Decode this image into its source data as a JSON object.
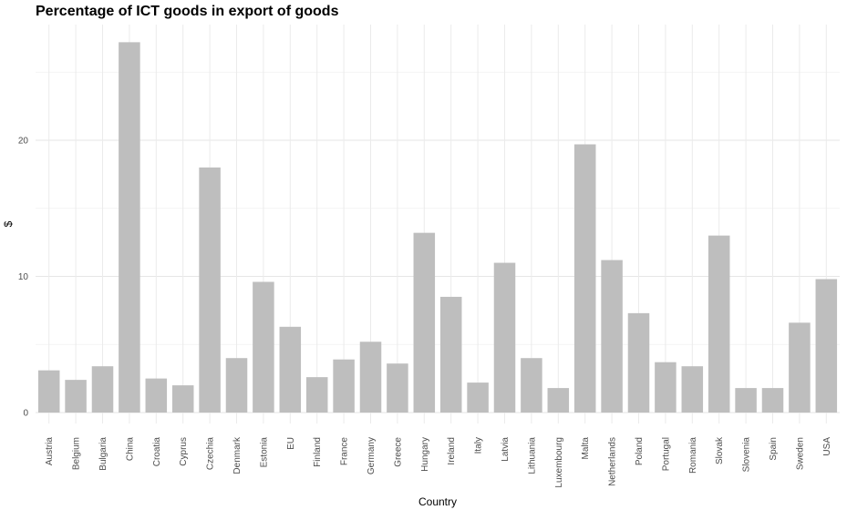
{
  "chart_data": {
    "type": "bar",
    "title": "Percentage of ICT goods in export of goods",
    "xlabel": "Country",
    "ylabel": "$",
    "ylim": [
      0,
      27.5
    ],
    "yticks": [
      0,
      10,
      20
    ],
    "grid": true,
    "bar_color": "#bebebe",
    "categories": [
      "Austria",
      "Belgium",
      "Bulgaria",
      "China",
      "Croatia",
      "Cyprus",
      "Czechia",
      "Denmark",
      "Estonia",
      "EU",
      "Finland",
      "France",
      "Germany",
      "Greece",
      "Hungary",
      "Ireland",
      "Italy",
      "Latvia",
      "Lithuania",
      "Luxembourg",
      "Malta",
      "Netherlands",
      "Poland",
      "Portugal",
      "Romania",
      "Slovak",
      "Slovenia",
      "Spain",
      "Sweden",
      "USA"
    ],
    "values": [
      3.1,
      2.4,
      3.4,
      27.2,
      2.5,
      2.0,
      18.0,
      4.0,
      9.6,
      6.3,
      2.6,
      3.9,
      5.2,
      3.6,
      13.2,
      8.5,
      2.2,
      11.0,
      4.0,
      1.8,
      19.7,
      11.2,
      7.3,
      3.7,
      3.4,
      13.0,
      1.8,
      1.8,
      6.6,
      9.8
    ]
  }
}
